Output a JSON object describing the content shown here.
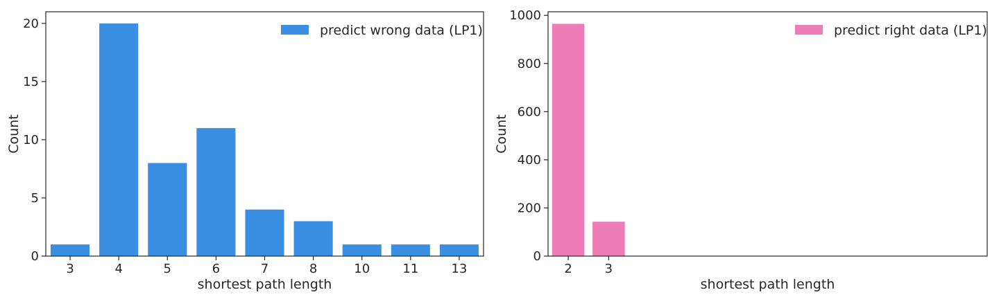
{
  "chart_data": [
    {
      "type": "bar",
      "categories": [
        "3",
        "4",
        "5",
        "6",
        "7",
        "8",
        "10",
        "11",
        "13"
      ],
      "series": [
        {
          "name": "predict wrong data (LP1)",
          "values": [
            1,
            20,
            8,
            11,
            4,
            3,
            1,
            1,
            1
          ],
          "color": "#3b8fe3"
        }
      ],
      "xlabel": "shortest path length",
      "ylabel": "Count",
      "ylim": [
        0,
        21
      ],
      "yticks": [
        0,
        5,
        10,
        15,
        20
      ],
      "legend": "top-right",
      "grid": false
    },
    {
      "type": "bar",
      "categories": [
        "2",
        "3"
      ],
      "series": [
        {
          "name": "predict right data (LP1)",
          "values": [
            965,
            143
          ],
          "color": "#ec7db6"
        }
      ],
      "xlabel": "shortest path length",
      "ylabel": "Count",
      "ylim": [
        0,
        1015
      ],
      "yticks": [
        0,
        200,
        400,
        600,
        800,
        1000
      ],
      "legend": "top-right",
      "grid": false
    }
  ]
}
